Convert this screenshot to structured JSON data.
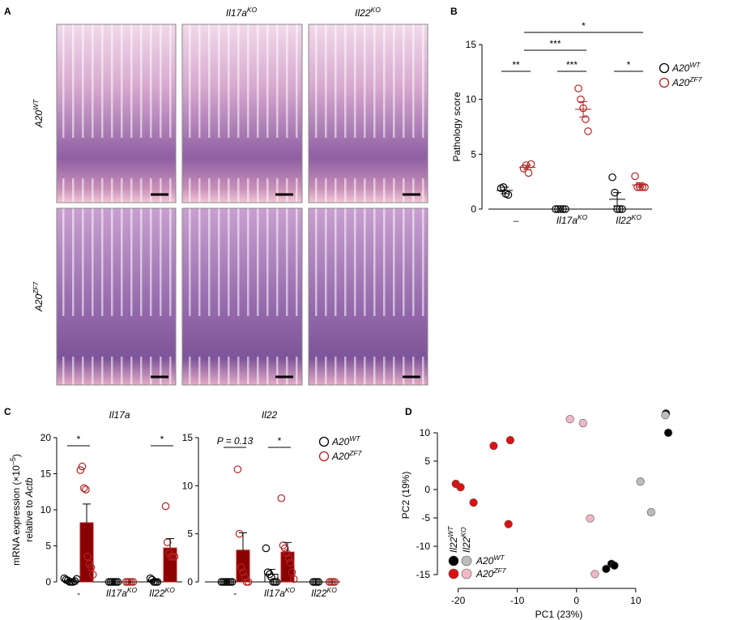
{
  "panel_labels": [
    "A",
    "B",
    "C",
    "D"
  ],
  "histology": {
    "columns": [
      {
        "text": "Il17a",
        "sup": "KO"
      },
      {
        "text": "Il22",
        "sup": "KO"
      }
    ],
    "rows": [
      {
        "text": "A20",
        "sup": "WT"
      },
      {
        "text": "A20",
        "sup": "ZF7"
      }
    ]
  },
  "chart_data": [
    {
      "type": "dot",
      "ylabel": "Pathology score",
      "ylim": [
        0,
        15
      ],
      "yticks": [
        0,
        5,
        10,
        15
      ],
      "categories": [
        {
          "text": "–"
        },
        {
          "text": "Il17a",
          "sup": "KO"
        },
        {
          "text": "Il22",
          "sup": "KO"
        }
      ],
      "series": [
        {
          "name": {
            "text": "A20",
            "sup": "WT"
          },
          "color": "#000000",
          "values": [
            [
              1.9,
              2.0,
              1.4,
              1.3
            ],
            [
              0,
              0,
              0,
              0,
              0
            ],
            [
              2.9,
              1.5,
              0,
              0,
              0
            ]
          ],
          "mean": [
            1.7,
            0,
            0.9
          ],
          "sem": [
            0.3,
            0,
            0.6
          ]
        },
        {
          "name": {
            "text": "A20",
            "sup": "ZF7"
          },
          "color": "#b22222",
          "values": [
            [
              3.7,
              4.0,
              3.3,
              4.1
            ],
            [
              11,
              10,
              9.2,
              8.2,
              7.1
            ],
            [
              3,
              2,
              2,
              2,
              2
            ]
          ],
          "mean": [
            3.8,
            9.1,
            2.2
          ],
          "sem": [
            0.2,
            0.7,
            0.2
          ]
        }
      ],
      "annotations": [
        "**",
        "***",
        "*",
        "***",
        "*"
      ]
    },
    {
      "type": "bar_dot",
      "title": "Il17a",
      "ylabel": {
        "line1": "mRNA expression (×10",
        "sup": "–5",
        "end": ")",
        "line2": "relative to ",
        "italic": "Actb"
      },
      "ylim": [
        0,
        20
      ],
      "yticks": [
        0,
        5,
        10,
        15,
        20
      ],
      "categories": [
        {
          "text": "-"
        },
        {
          "text": "Il17a",
          "sup": "KO"
        },
        {
          "text": "Il22",
          "sup": "KO"
        }
      ],
      "series": [
        {
          "color": "#000000",
          "fill": "#ffffff",
          "values": [
            [
              0.5,
              0.3,
              0.2,
              0,
              0,
              0,
              0.1,
              0.4
            ],
            [
              0,
              0,
              0,
              0,
              0,
              0
            ],
            [
              0.5,
              0.3,
              0,
              0,
              0
            ]
          ],
          "mean": [
            0.2,
            0,
            0.2
          ],
          "sem": [
            0.1,
            0,
            0.1
          ]
        },
        {
          "color": "#b22222",
          "fill": "#8b0000",
          "values": [
            [
              15.5,
              16,
              13,
              12.8,
              3.5,
              2.5,
              2,
              1
            ],
            [
              0,
              0,
              0,
              0,
              0
            ],
            [
              10.5,
              5.5,
              4,
              3.5,
              3.5,
              3.5
            ]
          ],
          "mean": [
            8.2,
            0,
            4.7
          ],
          "sem": [
            2.6,
            0,
            1.3
          ]
        }
      ],
      "annotations": [
        "*",
        "*"
      ]
    },
    {
      "type": "bar_dot",
      "title": "Il22",
      "ylim": [
        0,
        15
      ],
      "yticks": [
        0,
        5,
        10,
        15
      ],
      "categories": [
        {
          "text": "-"
        },
        {
          "text": "Il17a",
          "sup": "KO"
        },
        {
          "text": "Il22",
          "sup": "KO"
        }
      ],
      "series": [
        {
          "name": {
            "text": "A20",
            "sup": "WT"
          },
          "color": "#000000",
          "fill": "#ffffff",
          "values": [
            [
              0,
              0,
              0,
              0,
              0,
              0,
              0
            ],
            [
              3.5,
              1,
              0.8,
              0.5,
              0,
              0,
              0
            ],
            [
              0,
              0,
              0,
              0
            ]
          ],
          "mean": [
            0,
            0.8,
            0
          ],
          "sem": [
            0,
            0.5,
            0
          ]
        },
        {
          "name": {
            "text": "A20",
            "sup": "ZF7"
          },
          "color": "#b22222",
          "fill": "#8b0000",
          "values": [
            [
              11.7,
              5,
              1.5,
              1,
              0.5,
              0,
              0
            ],
            [
              8.7,
              3.8,
              3.5,
              3,
              2.5,
              2,
              1,
              0.3
            ],
            [
              0,
              0,
              0,
              0
            ]
          ],
          "mean": [
            3.3,
            3.1,
            0
          ],
          "sem": [
            1.8,
            1.0,
            0
          ]
        }
      ],
      "annotations": [
        "P = 0.13",
        "*"
      ]
    },
    {
      "type": "scatter",
      "xlabel": "PC1 (23%)",
      "ylabel": "PC2 (19%)",
      "xlim": [
        -22,
        17
      ],
      "xticks": [
        -20,
        -10,
        0,
        10
      ],
      "ylim": [
        -16,
        14
      ],
      "yticks": [
        -15,
        -10,
        -5,
        0,
        5,
        10
      ],
      "series": [
        {
          "color": "#000000",
          "x": [
            15.1,
            15.5,
            5.0,
            5.9,
            6.4
          ],
          "y": [
            13.4,
            10.0,
            -14.0,
            -13.1,
            -13.4
          ]
        },
        {
          "color": "#bbbbbb",
          "x": [
            15.0,
            10.8,
            12.6
          ],
          "y": [
            13.1,
            1.4,
            -4.0
          ]
        },
        {
          "color": "#dd1111",
          "x": [
            -20.4,
            -19.6,
            -17.4,
            -14.0,
            -11.2,
            -11.5
          ],
          "y": [
            1.0,
            0.4,
            -2.3,
            7.7,
            8.7,
            -6.1
          ]
        },
        {
          "color": "#f0b8c4",
          "x": [
            -1.1,
            1.1,
            2.3,
            3.1
          ],
          "y": [
            12.4,
            11.7,
            -5.1,
            -14.9
          ]
        }
      ],
      "legend": {
        "columns": [
          {
            "text": "Il22",
            "sup": "WT"
          },
          {
            "text": "Il22",
            "sup": "KO"
          }
        ],
        "rows": [
          {
            "text": "A20",
            "sup": "WT"
          },
          {
            "text": "A20",
            "sup": "ZF7"
          }
        ]
      }
    }
  ]
}
